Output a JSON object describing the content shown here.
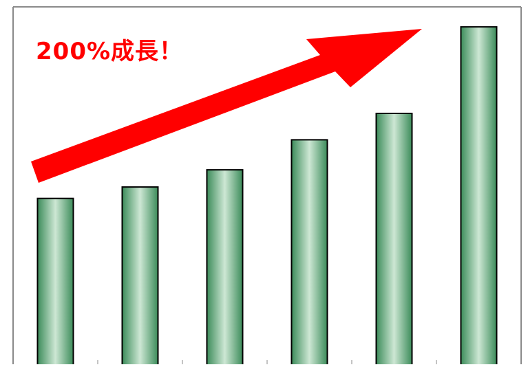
{
  "headline": {
    "text": "200%成長！",
    "color": "#ff0000"
  },
  "chart_data": {
    "type": "bar",
    "categories": [
      "",
      "",
      "",
      "",
      "",
      ""
    ],
    "values": [
      232,
      248,
      272,
      314,
      351,
      472
    ],
    "ylim": [
      0,
      500
    ],
    "grid": false,
    "legend": "none",
    "bar_color": "#3c8c5a",
    "bar_highlight": "#cde7d4",
    "trend_arrow_color": "#ff0000"
  }
}
